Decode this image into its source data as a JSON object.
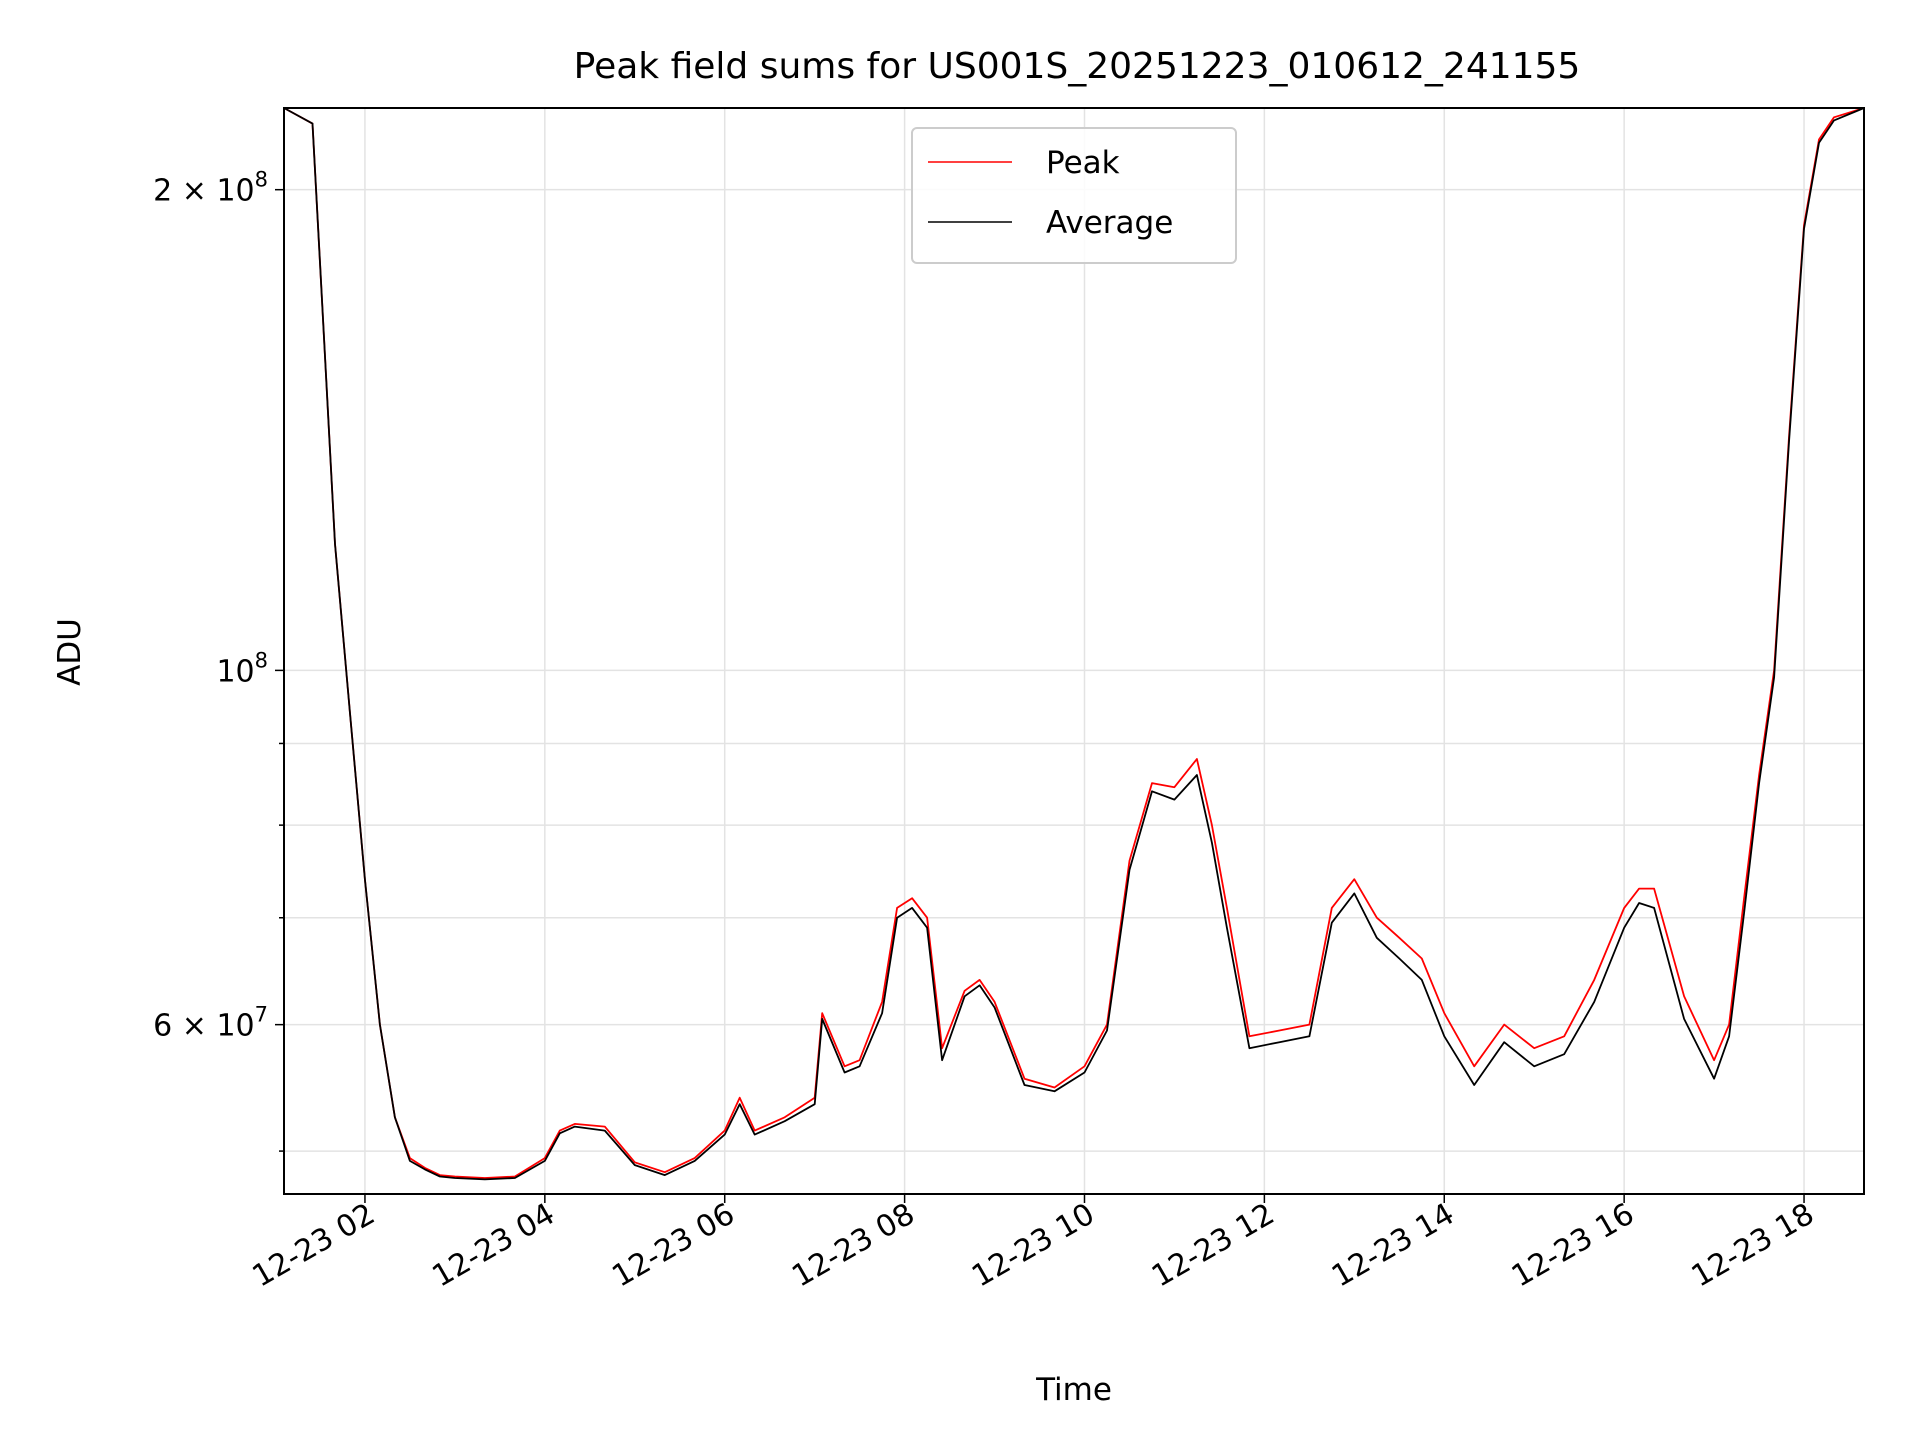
{
  "chart_data": {
    "type": "line",
    "title": "Peak field sums for US001S_20251223_010612_241155",
    "xlabel": "Time",
    "ylabel": "ADU",
    "yscale": "log",
    "ylim": [
      47000000,
      225000000
    ],
    "xlim": [
      "2025-12-23 01:06",
      "2025-12-23 18:40"
    ],
    "x_ticks": [
      "12-23 02",
      "12-23 04",
      "12-23 06",
      "12-23 08",
      "12-23 10",
      "12-23 12",
      "12-23 14",
      "12-23 16",
      "12-23 18"
    ],
    "y_ticks": [
      {
        "value": 60000000,
        "mantissa": "6",
        "exponent": "7"
      },
      {
        "value": 100000000,
        "mantissa": "",
        "exponent": "8"
      },
      {
        "value": 200000000,
        "mantissa": "2",
        "exponent": "8"
      }
    ],
    "grid": true,
    "legend_position": "upper-center",
    "colors": {
      "peak": "#ff0000",
      "average": "#000000",
      "grid": "#e3e3e3"
    },
    "x": [
      "2025-12-23 01:06",
      "2025-12-23 01:25",
      "2025-12-23 01:30",
      "2025-12-23 01:40",
      "2025-12-23 01:50",
      "2025-12-23 02:00",
      "2025-12-23 02:10",
      "2025-12-23 02:20",
      "2025-12-23 02:30",
      "2025-12-23 02:40",
      "2025-12-23 02:50",
      "2025-12-23 03:00",
      "2025-12-23 03:20",
      "2025-12-23 03:40",
      "2025-12-23 04:00",
      "2025-12-23 04:10",
      "2025-12-23 04:20",
      "2025-12-23 04:40",
      "2025-12-23 05:00",
      "2025-12-23 05:20",
      "2025-12-23 05:40",
      "2025-12-23 06:00",
      "2025-12-23 06:10",
      "2025-12-23 06:20",
      "2025-12-23 06:40",
      "2025-12-23 07:00",
      "2025-12-23 07:05",
      "2025-12-23 07:20",
      "2025-12-23 07:30",
      "2025-12-23 07:45",
      "2025-12-23 07:55",
      "2025-12-23 08:05",
      "2025-12-23 08:15",
      "2025-12-23 08:25",
      "2025-12-23 08:40",
      "2025-12-23 08:50",
      "2025-12-23 09:00",
      "2025-12-23 09:20",
      "2025-12-23 09:40",
      "2025-12-23 10:00",
      "2025-12-23 10:15",
      "2025-12-23 10:30",
      "2025-12-23 10:45",
      "2025-12-23 11:00",
      "2025-12-23 11:15",
      "2025-12-23 11:25",
      "2025-12-23 11:35",
      "2025-12-23 11:50",
      "2025-12-23 12:10",
      "2025-12-23 12:30",
      "2025-12-23 12:45",
      "2025-12-23 13:00",
      "2025-12-23 13:15",
      "2025-12-23 13:30",
      "2025-12-23 13:45",
      "2025-12-23 14:00",
      "2025-12-23 14:20",
      "2025-12-23 14:40",
      "2025-12-23 15:00",
      "2025-12-23 15:20",
      "2025-12-23 15:40",
      "2025-12-23 16:00",
      "2025-12-23 16:10",
      "2025-12-23 16:20",
      "2025-12-23 16:40",
      "2025-12-23 17:00",
      "2025-12-23 17:10",
      "2025-12-23 17:20",
      "2025-12-23 17:30",
      "2025-12-23 17:40",
      "2025-12-23 17:50",
      "2025-12-23 18:00",
      "2025-12-23 18:10",
      "2025-12-23 18:20",
      "2025-12-23 18:40"
    ],
    "series": [
      {
        "name": "Peak",
        "values": [
          225000000,
          220000000,
          180000000,
          120000000,
          94000000,
          74000000,
          60000000,
          52500000,
          49500000,
          48800000,
          48300000,
          48200000,
          48100000,
          48200000,
          49500000,
          51500000,
          52000000,
          51800000,
          49200000,
          48500000,
          49500000,
          51500000,
          54000000,
          51500000,
          52500000,
          54000000,
          61000000,
          56500000,
          57000000,
          62000000,
          71000000,
          72000000,
          70000000,
          58000000,
          63000000,
          64000000,
          62000000,
          55500000,
          54800000,
          56500000,
          60000000,
          76000000,
          85000000,
          84500000,
          88000000,
          80000000,
          71000000,
          59000000,
          59500000,
          60000000,
          71000000,
          74000000,
          70000000,
          68000000,
          66000000,
          61000000,
          56500000,
          60000000,
          58000000,
          59000000,
          64000000,
          71000000,
          73000000,
          73000000,
          62500000,
          57000000,
          60000000,
          72000000,
          86000000,
          100000000,
          140000000,
          190000000,
          215000000,
          222000000,
          225000000
        ]
      },
      {
        "name": "Average",
        "values": [
          225000000,
          220000000,
          180000000,
          120000000,
          94000000,
          74000000,
          60000000,
          52500000,
          49300000,
          48700000,
          48200000,
          48100000,
          48000000,
          48100000,
          49300000,
          51300000,
          51800000,
          51500000,
          49000000,
          48300000,
          49300000,
          51200000,
          53500000,
          51200000,
          52200000,
          53500000,
          60500000,
          56000000,
          56500000,
          61000000,
          70000000,
          71000000,
          69000000,
          57000000,
          62500000,
          63500000,
          61500000,
          55000000,
          54500000,
          56000000,
          59500000,
          75000000,
          84000000,
          83000000,
          86000000,
          78000000,
          69000000,
          58000000,
          58500000,
          59000000,
          69500000,
          72500000,
          68000000,
          66000000,
          64000000,
          59000000,
          55000000,
          58500000,
          56500000,
          57500000,
          62000000,
          69000000,
          71500000,
          71000000,
          60500000,
          55500000,
          59000000,
          70500000,
          85000000,
          99000000,
          139000000,
          189000000,
          214000000,
          221000000,
          225000000
        ]
      }
    ]
  }
}
